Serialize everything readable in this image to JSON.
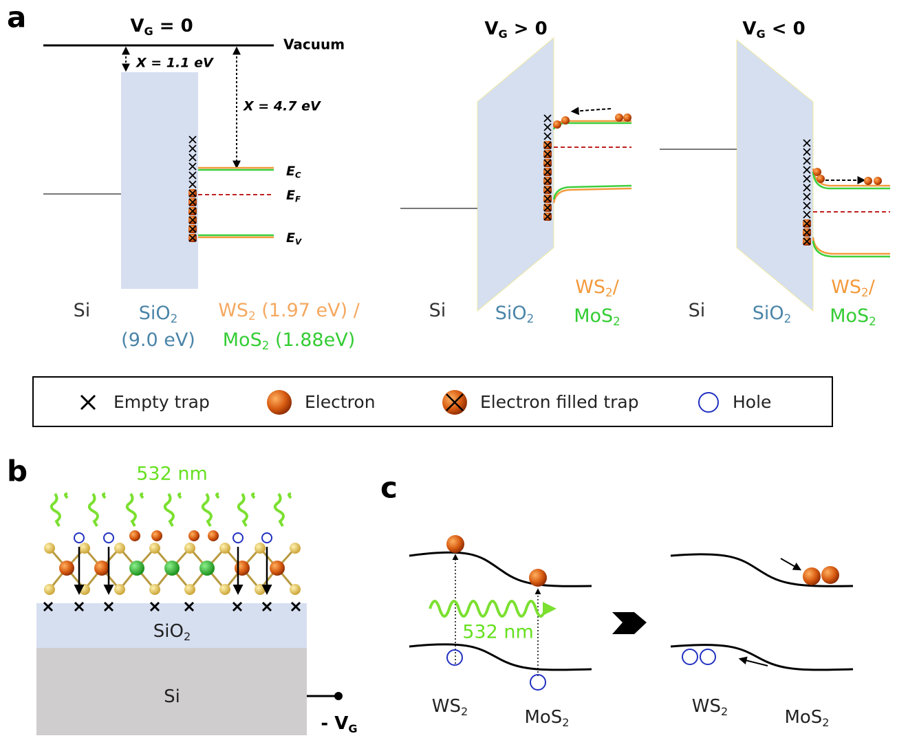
{
  "panel_a": {
    "letter": "a",
    "left": {
      "title": {
        "text": "V",
        "sub": "G",
        "tail": " = 0"
      },
      "vacuum": "Vacuum",
      "chi_sio2": "X = 1.1 eV",
      "chi_ws2": "X = 4.7 eV",
      "ec": {
        "text": "E",
        "sub": "C"
      },
      "ef": {
        "text": "E",
        "sub": "F"
      },
      "ev": {
        "text": "E",
        "sub": "V"
      },
      "si": {
        "text": "Si"
      },
      "sio2": {
        "text": "SiO",
        "sub": "2"
      },
      "sio2_gap": {
        "text": "(9.0 eV)"
      },
      "ws2": {
        "text": "WS",
        "sub": "2",
        "tail": " (1.97 eV) /"
      },
      "mos2": {
        "text": "MoS",
        "sub": "2",
        "tail": " (1.88eV)"
      }
    },
    "middle": {
      "title": {
        "text": "V",
        "sub": "G",
        "tail": " > 0"
      },
      "si": {
        "text": "Si"
      },
      "sio2": {
        "text": "SiO",
        "sub": "2"
      },
      "ws2": {
        "text": "WS",
        "sub": "2",
        "tail": "/"
      },
      "mos2": {
        "text": "MoS",
        "sub": "2"
      }
    },
    "right": {
      "title": {
        "text": "V",
        "sub": "G",
        "tail": " < 0"
      },
      "si": {
        "text": "Si"
      },
      "sio2": {
        "text": "SiO",
        "sub": "2"
      },
      "ws2": {
        "text": "WS",
        "sub": "2",
        "tail": "/"
      },
      "mos2": {
        "text": "MoS",
        "sub": "2"
      }
    }
  },
  "legend": [
    "Empty trap",
    "Electron",
    "Electron filled trap",
    "Hole"
  ],
  "panel_b": {
    "letter": "b",
    "light": "532 nm",
    "sio2": {
      "text": "SiO",
      "sub": "2"
    },
    "si": {
      "text": "Si"
    },
    "gate": {
      "text": "- V",
      "sub": "G"
    }
  },
  "panel_c": {
    "letter": "c",
    "light": "532 nm",
    "ws2_before": {
      "text": "WS",
      "sub": "2"
    },
    "mos2_before": {
      "text": "MoS",
      "sub": "2"
    },
    "ws2_after": {
      "text": "WS",
      "sub": "2"
    },
    "mos2_after": {
      "text": "MoS",
      "sub": "2"
    }
  }
}
